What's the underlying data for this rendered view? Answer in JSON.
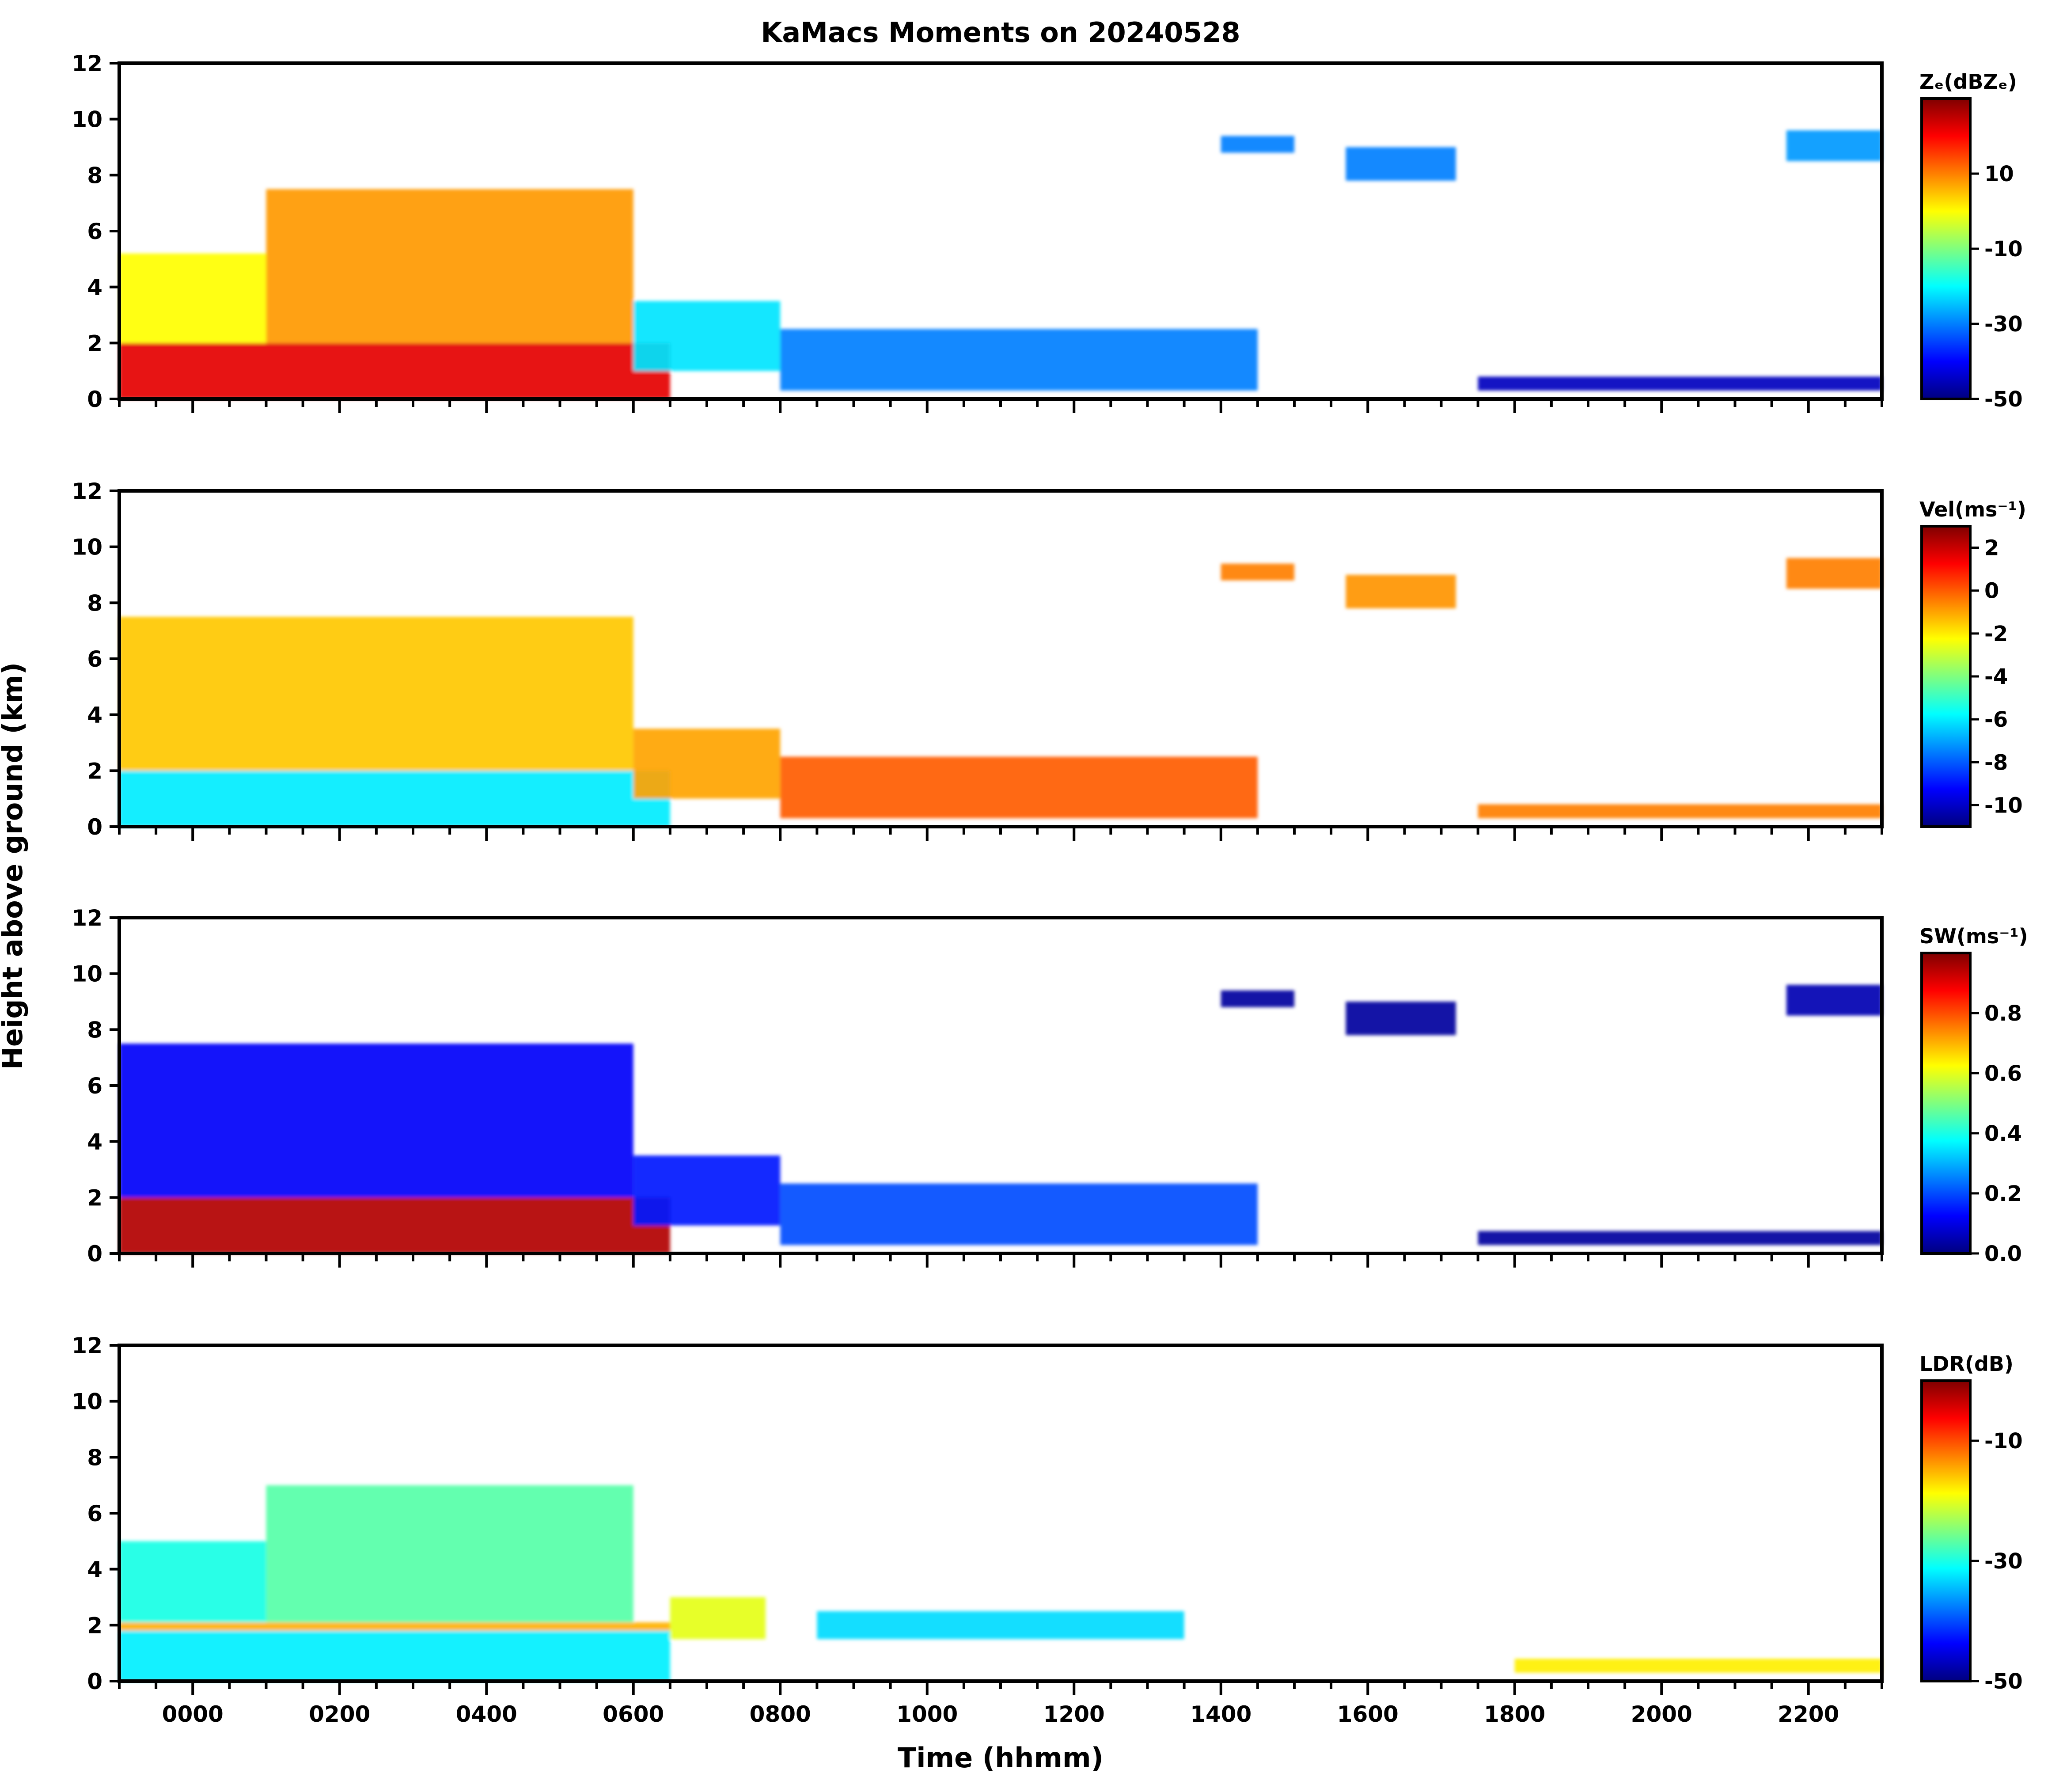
{
  "title": "KaMacs Moments on 20240528",
  "ylabel": "Height above ground (km)",
  "xlabel": "Time (hhmm)",
  "colors": {
    "jet": [
      "#00007f",
      "#0000ff",
      "#007fff",
      "#00ffff",
      "#7fff7f",
      "#ffff00",
      "#ff7f00",
      "#ff0000",
      "#7f0000"
    ]
  },
  "chart_data": [
    {
      "type": "heatmap",
      "panel": "reflectivity",
      "cbar_label": "Zₑ(dBZₑ)",
      "cbar_range": [
        -50,
        30
      ],
      "cbar_ticks": [
        "10",
        "-10",
        "-30",
        "-50"
      ],
      "xlim": [
        -100,
        2300
      ],
      "ylim": [
        0,
        12
      ],
      "yticks": [
        "0",
        "2",
        "4",
        "6",
        "8",
        "10",
        "12"
      ],
      "xticks": [],
      "regions": [
        {
          "t0": -100,
          "t1": 650,
          "h0": 0,
          "h1": 2.0,
          "value": 22
        },
        {
          "t0": -100,
          "t1": 100,
          "h0": 2.0,
          "h1": 5.2,
          "value": 0
        },
        {
          "t0": 100,
          "t1": 600,
          "h0": 2.0,
          "h1": 7.5,
          "value": 8
        },
        {
          "t0": 600,
          "t1": 800,
          "h0": 1.0,
          "h1": 3.5,
          "value": -22
        },
        {
          "t0": 800,
          "t1": 1450,
          "h0": 0.3,
          "h1": 2.5,
          "value": -30
        },
        {
          "t0": 1400,
          "t1": 1500,
          "h0": 8.8,
          "h1": 9.4,
          "value": -30
        },
        {
          "t0": 1570,
          "t1": 1720,
          "h0": 7.8,
          "h1": 9.0,
          "value": -30
        },
        {
          "t0": 2170,
          "t1": 2300,
          "h0": 8.5,
          "h1": 9.6,
          "value": -28
        },
        {
          "t0": 1750,
          "t1": 2300,
          "h0": 0.3,
          "h1": 0.8,
          "value": -45
        }
      ]
    },
    {
      "type": "heatmap",
      "panel": "velocity",
      "cbar_label": "Vel(ms⁻¹)",
      "cbar_range": [
        -11,
        3
      ],
      "cbar_ticks": [
        "2",
        "0",
        "-2",
        "-4",
        "-6",
        "-8",
        "-10"
      ],
      "xlim": [
        -100,
        2300
      ],
      "ylim": [
        0,
        12
      ],
      "yticks": [
        "0",
        "2",
        "4",
        "6",
        "8",
        "10",
        "12"
      ],
      "xticks": [],
      "regions": [
        {
          "t0": -100,
          "t1": 650,
          "h0": 0,
          "h1": 2.0,
          "value": -6
        },
        {
          "t0": -100,
          "t1": 600,
          "h0": 2.0,
          "h1": 7.5,
          "value": -1.5
        },
        {
          "t0": 600,
          "t1": 800,
          "h0": 1.0,
          "h1": 3.5,
          "value": -1
        },
        {
          "t0": 800,
          "t1": 1450,
          "h0": 0.3,
          "h1": 2.5,
          "value": 0
        },
        {
          "t0": 1400,
          "t1": 1500,
          "h0": 8.8,
          "h1": 9.4,
          "value": -0.5
        },
        {
          "t0": 1570,
          "t1": 1720,
          "h0": 7.8,
          "h1": 9.0,
          "value": -0.8
        },
        {
          "t0": 2170,
          "t1": 2300,
          "h0": 8.5,
          "h1": 9.6,
          "value": -0.5
        },
        {
          "t0": 1750,
          "t1": 2300,
          "h0": 0.3,
          "h1": 0.8,
          "value": -0.5
        }
      ]
    },
    {
      "type": "heatmap",
      "panel": "spectrum_width",
      "cbar_label": "SW(ms⁻¹)",
      "cbar_range": [
        0,
        1
      ],
      "cbar_ticks": [
        "0.8",
        "0.6",
        "0.4",
        "0.2",
        "0.0"
      ],
      "xlim": [
        -100,
        2300
      ],
      "ylim": [
        0,
        12
      ],
      "yticks": [
        "0",
        "2",
        "4",
        "6",
        "8",
        "10",
        "12"
      ],
      "xticks": [],
      "regions": [
        {
          "t0": -100,
          "t1": 650,
          "h0": 0,
          "h1": 2.0,
          "value": 0.95
        },
        {
          "t0": -100,
          "t1": 600,
          "h0": 2.0,
          "h1": 7.5,
          "value": 0.12
        },
        {
          "t0": 600,
          "t1": 800,
          "h0": 1.0,
          "h1": 3.5,
          "value": 0.15
        },
        {
          "t0": 800,
          "t1": 1450,
          "h0": 0.3,
          "h1": 2.5,
          "value": 0.2
        },
        {
          "t0": 1400,
          "t1": 1500,
          "h0": 8.8,
          "h1": 9.4,
          "value": 0.03
        },
        {
          "t0": 1570,
          "t1": 1720,
          "h0": 7.8,
          "h1": 9.0,
          "value": 0.03
        },
        {
          "t0": 2170,
          "t1": 2300,
          "h0": 8.5,
          "h1": 9.6,
          "value": 0.05
        },
        {
          "t0": 1750,
          "t1": 2300,
          "h0": 0.3,
          "h1": 0.8,
          "value": 0.03
        }
      ]
    },
    {
      "type": "heatmap",
      "panel": "ldr",
      "cbar_label": "LDR(dB)",
      "cbar_range": [
        -50,
        0
      ],
      "cbar_ticks": [
        "-10",
        "-30",
        "-50"
      ],
      "xlim": [
        -100,
        2300
      ],
      "ylim": [
        0,
        12
      ],
      "yticks": [
        "0",
        "2",
        "4",
        "6",
        "8",
        "10",
        "12"
      ],
      "xticks": [
        "0000",
        "0200",
        "0400",
        "0600",
        "0800",
        "1000",
        "1200",
        "1400",
        "1600",
        "1800",
        "2000",
        "2200"
      ],
      "regions": [
        {
          "t0": -100,
          "t1": 650,
          "h0": 0,
          "h1": 1.8,
          "value": -32
        },
        {
          "t0": -100,
          "t1": 650,
          "h0": 1.8,
          "h1": 2.1,
          "value": -15
        },
        {
          "t0": -100,
          "t1": 100,
          "h0": 2.1,
          "h1": 5.0,
          "value": -30
        },
        {
          "t0": 100,
          "t1": 600,
          "h0": 2.1,
          "h1": 7.0,
          "value": -27
        },
        {
          "t0": 650,
          "t1": 780,
          "h0": 1.5,
          "h1": 3.0,
          "value": -20
        },
        {
          "t0": 850,
          "t1": 1350,
          "h0": 1.5,
          "h1": 2.5,
          "value": -33
        },
        {
          "t0": 1800,
          "t1": 2300,
          "h0": 0.3,
          "h1": 0.8,
          "value": -18
        }
      ]
    }
  ]
}
